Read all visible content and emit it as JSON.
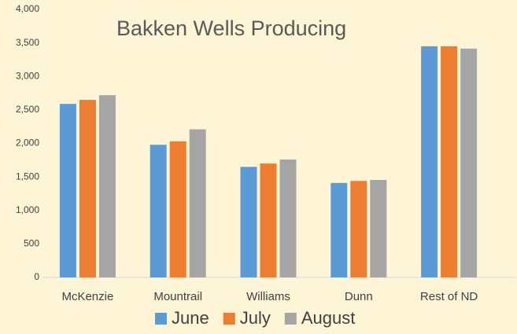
{
  "chart_data": {
    "type": "bar",
    "title": "Bakken Wells Producing",
    "categories": [
      "McKenzie",
      "Mountrail",
      "Williams",
      "Dunn",
      "Rest of ND"
    ],
    "series": [
      {
        "name": "June",
        "color": "#5b9bd5",
        "values": [
          2590,
          1980,
          1650,
          1410,
          3450
        ]
      },
      {
        "name": "July",
        "color": "#ed7d31",
        "values": [
          2650,
          2030,
          1700,
          1440,
          3450
        ]
      },
      {
        "name": "August",
        "color": "#a5a5a5",
        "values": [
          2720,
          2210,
          1760,
          1455,
          3415
        ]
      }
    ],
    "ylim": [
      0,
      4000
    ],
    "yticks": [
      0,
      {
        "value": 500,
        "label": "500"
      },
      {
        "value": 1000,
        "label": "1,000"
      },
      {
        "value": 1500,
        "label": "1,500"
      },
      {
        "value": 2000,
        "label": "2,000"
      },
      {
        "value": 2500,
        "label": "2,500"
      },
      {
        "value": 3000,
        "label": "3,000"
      },
      {
        "value": 3500,
        "label": "3,500"
      },
      {
        "value": 4000,
        "label": "4,000"
      }
    ],
    "grid": false
  }
}
